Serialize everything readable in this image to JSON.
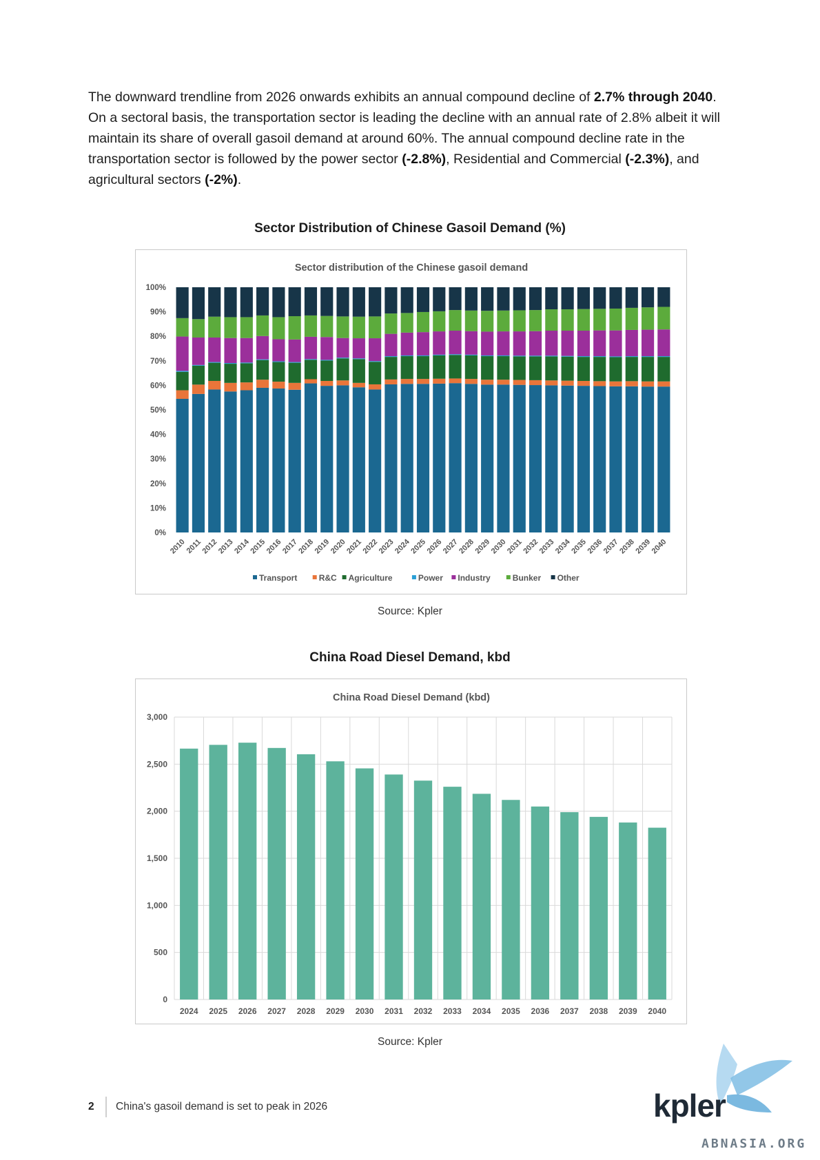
{
  "paragraph": {
    "t1": "The downward trendline from 2026 onwards exhibits an annual compound decline of ",
    "b1": "2.7% through 2040",
    "t2": ". On a sectoral basis, the transportation sector is leading the decline with an annual rate of 2.8% albeit it will maintain its share of overall gasoil demand at around 60%. The annual compound decline rate in the transportation sector is followed by the power sector ",
    "b2": "(-2.8%)",
    "t3": ", Residential and Commercial ",
    "b3": "(-2.3%)",
    "t4": ", and agricultural sectors ",
    "b4": "(-2%)",
    "t5": "."
  },
  "figure1": {
    "title": "Sector Distribution of Chinese Gasoil Demand (%)",
    "source": "Source: Kpler"
  },
  "figure2": {
    "title": "China Road Diesel Demand, kbd",
    "source": "Source: Kpler"
  },
  "footer": {
    "page_number": "2",
    "text": "China's gasoil demand is set to peak in 2026"
  },
  "logo": {
    "text": "kpler",
    "watermark": "ABNASIA.ORG"
  },
  "colors": {
    "transport": "#1b6891",
    "rc": "#e9753a",
    "agriculture": "#1f6b2e",
    "power": "#2a9fd6",
    "industry": "#9b2f9b",
    "bunker": "#5cab3c",
    "other": "#173548",
    "road_bar": "#5db39c"
  },
  "chart_data": [
    {
      "type": "bar",
      "stacked": true,
      "title": "Sector distribution of the Chinese gasoil demand",
      "categories": [
        "2010",
        "2011",
        "2012",
        "2013",
        "2014",
        "2015",
        "2016",
        "2017",
        "2018",
        "2019",
        "2020",
        "2021",
        "2022",
        "2023",
        "2024",
        "2025",
        "2026",
        "2027",
        "2028",
        "2029",
        "2030",
        "2031",
        "2032",
        "2033",
        "2034",
        "2035",
        "2036",
        "2037",
        "2038",
        "2039",
        "2040"
      ],
      "ylim": [
        0,
        100
      ],
      "yticks": [
        "0%",
        "10%",
        "20%",
        "30%",
        "40%",
        "50%",
        "60%",
        "70%",
        "80%",
        "90%",
        "100%"
      ],
      "legend_position": "bottom",
      "series": [
        {
          "name": "Transport",
          "color": "#1b6891",
          "values": [
            54.5,
            56.5,
            58.3,
            57.5,
            58.0,
            59.0,
            58.7,
            58.2,
            60.8,
            59.8,
            60.0,
            59.2,
            58.3,
            60.4,
            60.6,
            60.6,
            60.7,
            60.9,
            60.6,
            60.3,
            60.3,
            60.2,
            60.1,
            60.0,
            59.9,
            59.8,
            59.7,
            59.6,
            59.6,
            59.5,
            59.5
          ]
        },
        {
          "name": "R&C",
          "color": "#e9753a",
          "values": [
            3.5,
            3.8,
            3.5,
            3.5,
            3.2,
            3.3,
            2.8,
            2.8,
            1.7,
            2.0,
            2.0,
            1.8,
            2.1,
            2.0,
            2.0,
            2.0,
            2.0,
            1.9,
            2.0,
            2.0,
            2.0,
            2.0,
            2.0,
            2.0,
            2.0,
            2.0,
            2.0,
            2.0,
            2.1,
            2.1,
            2.1
          ]
        },
        {
          "name": "Agriculture",
          "color": "#1f6b2e",
          "values": [
            7.5,
            7.7,
            7.4,
            7.8,
            7.8,
            8.0,
            8.0,
            8.2,
            7.9,
            8.3,
            9.0,
            9.7,
            9.2,
            9.2,
            9.3,
            9.3,
            9.5,
            9.6,
            9.6,
            9.6,
            9.6,
            9.6,
            9.7,
            9.8,
            9.8,
            9.8,
            9.9,
            9.9,
            9.9,
            10.0,
            10.0
          ]
        },
        {
          "name": "Power",
          "color": "#2a9fd6",
          "values": [
            0.4,
            0.3,
            0.3,
            0.3,
            0.3,
            0.3,
            0.3,
            0.3,
            0.3,
            0.3,
            0.3,
            0.3,
            0.3,
            0.3,
            0.3,
            0.3,
            0.3,
            0.3,
            0.3,
            0.3,
            0.3,
            0.3,
            0.3,
            0.3,
            0.3,
            0.3,
            0.3,
            0.3,
            0.3,
            0.3,
            0.3
          ]
        },
        {
          "name": "Industry",
          "color": "#9b2f9b",
          "values": [
            14.0,
            11.2,
            10.0,
            10.2,
            10.0,
            9.5,
            9.0,
            9.2,
            9.1,
            9.3,
            8.0,
            8.2,
            9.3,
            9.1,
            9.3,
            9.5,
            9.5,
            9.6,
            9.6,
            9.7,
            9.8,
            9.9,
            10.0,
            10.2,
            10.3,
            10.4,
            10.5,
            10.6,
            10.7,
            10.8,
            10.9
          ]
        },
        {
          "name": "Bunker",
          "color": "#5cab3c",
          "values": [
            7.5,
            7.5,
            8.5,
            8.5,
            8.5,
            8.4,
            9.0,
            9.5,
            8.7,
            8.6,
            8.8,
            8.8,
            8.9,
            8.3,
            8.0,
            8.2,
            8.2,
            8.4,
            8.4,
            8.5,
            8.5,
            8.6,
            8.6,
            8.7,
            8.7,
            8.8,
            8.8,
            8.9,
            9.0,
            9.1,
            9.2
          ]
        },
        {
          "name": "Other",
          "color": "#173548",
          "values": [
            12.6,
            13.0,
            12.0,
            12.2,
            12.2,
            11.5,
            12.2,
            11.8,
            11.5,
            11.7,
            11.9,
            12.0,
            11.9,
            10.7,
            10.5,
            10.1,
            9.8,
            9.3,
            9.5,
            9.6,
            9.5,
            9.4,
            9.3,
            9.0,
            9.0,
            8.9,
            8.8,
            8.7,
            8.4,
            8.2,
            8.0
          ]
        }
      ]
    },
    {
      "type": "bar",
      "title": "China Road Diesel Demand (kbd)",
      "categories": [
        "2024",
        "2025",
        "2026",
        "2027",
        "2028",
        "2029",
        "2030",
        "2031",
        "2032",
        "2033",
        "2034",
        "2035",
        "2036",
        "2037",
        "2038",
        "2039",
        "2040"
      ],
      "values": [
        2665,
        2705,
        2728,
        2672,
        2605,
        2530,
        2455,
        2390,
        2325,
        2260,
        2185,
        2120,
        2050,
        1990,
        1940,
        1880,
        1825
      ],
      "ylim": [
        0,
        3000
      ],
      "yticks": [
        "0",
        "500",
        "1,000",
        "1,500",
        "2,000",
        "2,500",
        "3,000"
      ],
      "grid": true,
      "color": "#5db39c"
    }
  ]
}
